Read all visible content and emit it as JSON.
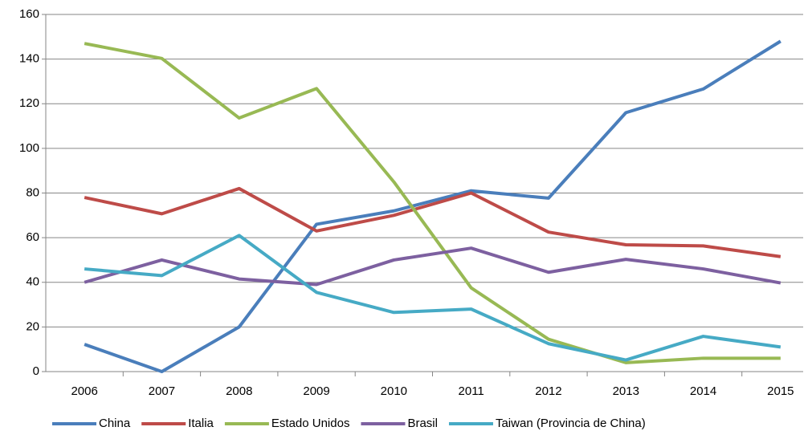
{
  "chart_data": {
    "type": "line",
    "categories": [
      "2006",
      "2007",
      "2008",
      "2009",
      "2010",
      "2011",
      "2012",
      "2013",
      "2014",
      "2015"
    ],
    "series": [
      {
        "name": "China",
        "color": "#4a7ebb",
        "values": [
          12.2,
          0,
          20,
          66,
          72,
          81,
          77.7,
          116,
          126.6,
          148
        ]
      },
      {
        "name": "Italia",
        "color": "#be4b48",
        "values": [
          78,
          70.7,
          82,
          63,
          70,
          80,
          62.5,
          56.8,
          56.3,
          51.5
        ]
      },
      {
        "name": "Estado Unidos",
        "color": "#98b954",
        "values": [
          147,
          140.3,
          113.6,
          126.8,
          85,
          37.5,
          14.5,
          4,
          6,
          6
        ]
      },
      {
        "name": "Brasil",
        "color": "#7d60a0",
        "values": [
          40,
          50,
          41.5,
          39,
          50,
          55.3,
          44.5,
          50.3,
          46,
          39.7
        ]
      },
      {
        "name": "Taiwan (Provincia de China)",
        "color": "#46aac5",
        "values": [
          46,
          43,
          61,
          35.5,
          26.5,
          28,
          12.5,
          5.2,
          15.8,
          11
        ]
      }
    ],
    "ylim": [
      0,
      160
    ],
    "yticks": [
      0,
      20,
      40,
      60,
      80,
      100,
      120,
      140,
      160
    ],
    "grid": true,
    "legend": "bottom"
  }
}
